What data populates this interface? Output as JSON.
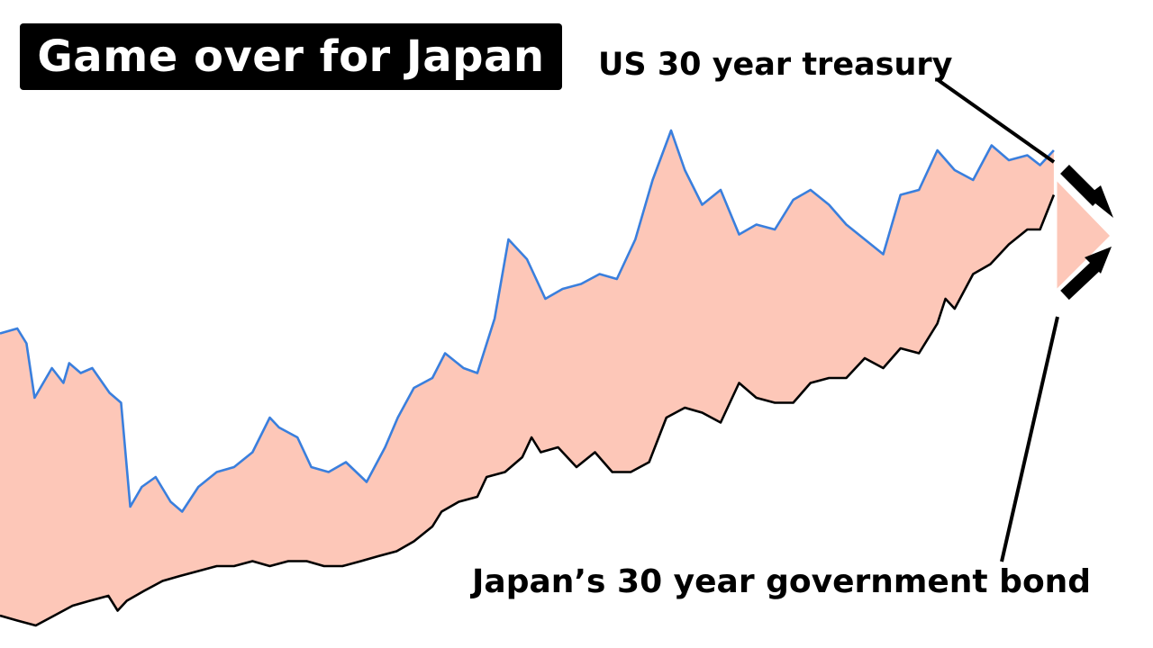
{
  "title": "Game over for Japan",
  "colors": {
    "us_series": "#3a7fdd",
    "japan_series": "#000000",
    "spread_fill": "#fdc7b8",
    "title_bg": "#000000",
    "title_text": "#ffffff"
  },
  "chart_data": {
    "type": "area",
    "title": "Game over for Japan",
    "xlabel": "",
    "ylabel": "",
    "x_range": [
      0,
      100
    ],
    "y_range": [
      0,
      100
    ],
    "grid": false,
    "legend": "none",
    "fill_between": [
      "US 30 year treasury",
      "Japan's 30 year government bond"
    ],
    "annotations": [
      {
        "text": "US 30 year treasury",
        "points_to": "US 30 year treasury"
      },
      {
        "text": "Japan’s 30 year government bond",
        "points_to": "Japan's 30 year government bond"
      }
    ],
    "series": [
      {
        "name": "US 30 year treasury",
        "color": "#3a7fdd",
        "x": [
          0,
          1.5,
          2.3,
          3,
          4.5,
          5.5,
          6,
          7,
          8,
          9.5,
          10.5,
          11.3,
          12.3,
          13.5,
          14.8,
          15.8,
          17.2,
          18.8,
          20.3,
          21.9,
          23.4,
          24.2,
          25.8,
          27,
          28.5,
          30,
          31.8,
          33.4,
          34.5,
          35.9,
          37.5,
          38.6,
          40.2,
          41.4,
          42.9,
          44.1,
          45.7,
          47.3,
          48.8,
          50.4,
          52,
          53.5,
          55.1,
          56.6,
          58.2,
          59.4,
          60.9,
          62.5,
          64.1,
          65.6,
          67.2,
          68.8,
          70.3,
          71.9,
          73.4,
          75,
          76.6,
          78.1,
          79.7,
          81.3,
          82.8,
          84.4,
          86,
          87.5,
          89.1,
          90.2,
          91.4
        ],
        "y": [
          59,
          60,
          57,
          46,
          52,
          49,
          53,
          51,
          52,
          47,
          45,
          24,
          28,
          30,
          25,
          23,
          28,
          31,
          32,
          35,
          42,
          40,
          38,
          32,
          31,
          33,
          29,
          36,
          42,
          48,
          50,
          55,
          52,
          51,
          62,
          78,
          74,
          66,
          68,
          69,
          71,
          70,
          78,
          90,
          100,
          92,
          85,
          88,
          79,
          81,
          80,
          86,
          88,
          85,
          81,
          78,
          75,
          87,
          88,
          96,
          92,
          90,
          97,
          94,
          95,
          93,
          96
        ]
      },
      {
        "name": "Japan's 30 year government bond",
        "color": "#000000",
        "x": [
          0,
          1.5,
          3.1,
          4.7,
          6.3,
          7.8,
          9.4,
          10.2,
          11,
          12.5,
          14.1,
          15.6,
          17.2,
          18.8,
          20.3,
          21.9,
          23.4,
          25,
          26.6,
          28.1,
          29.7,
          31.3,
          32.8,
          34.4,
          35.9,
          37.5,
          38.3,
          39.8,
          41.4,
          42.2,
          43.8,
          45.3,
          46.1,
          46.9,
          48.4,
          50,
          51.6,
          53.1,
          54.7,
          56.3,
          57.8,
          59.4,
          60.9,
          62.5,
          64.1,
          65.6,
          67.2,
          68.8,
          70.3,
          71.9,
          73.4,
          75,
          76.6,
          78.1,
          79.7,
          81.3,
          82,
          82.8,
          84.4,
          85.9,
          87.5,
          89.1,
          90.2,
          91.4
        ],
        "y": [
          2,
          1,
          0,
          2,
          4,
          5,
          6,
          3,
          5,
          7,
          9,
          10,
          11,
          12,
          12,
          13,
          12,
          13,
          13,
          12,
          12,
          13,
          14,
          15,
          17,
          20,
          23,
          25,
          26,
          30,
          31,
          34,
          38,
          35,
          36,
          32,
          35,
          31,
          31,
          33,
          42,
          44,
          43,
          41,
          49,
          46,
          45,
          45,
          49,
          50,
          50,
          54,
          52,
          56,
          55,
          61,
          66,
          64,
          71,
          73,
          77,
          80,
          80,
          87
        ]
      }
    ]
  }
}
